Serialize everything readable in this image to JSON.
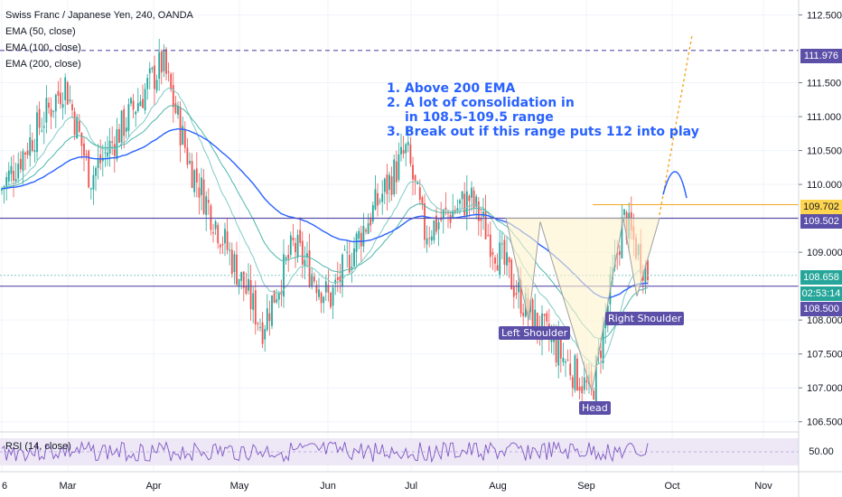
{
  "header": {
    "symbol": "Swiss Franc / Japanese Yen, 240, OANDA",
    "ema_50": "EMA (50, close)",
    "ema_100": "EMA (100, close)",
    "ema_200": "EMA (200, close)"
  },
  "annotation": {
    "line1": "1. Above 200 EMA",
    "line2": "2. A lot of consolidation in",
    "line3": "in 108.5-109.5 range",
    "line4": "3. Break out if this range puts 112 into play"
  },
  "pattern_labels": {
    "left_shoulder": "Left Shoulder",
    "head": "Head",
    "right_shoulder": "Right Shoulder"
  },
  "price_tags": {
    "level_111976": "111.976",
    "level_109702": "109.702",
    "level_109502": "109.502",
    "last_price": "108.658",
    "countdown": "02:53:14",
    "level_108500": "108.500",
    "rsi_value": "50.00"
  },
  "rsi_label": "RSI (14, close)",
  "colors": {
    "up_candle": "#26a69a",
    "down_candle": "#ef5350",
    "ema_200": "#2962ff",
    "level_line": "#5b4fa8",
    "resistance_orange": "#f5a623",
    "projection": "#2962ff",
    "rsi_line": "#7e57c2",
    "rsi_band": "#ede7f6"
  },
  "chart_data": {
    "type": "candlestick",
    "title": "Swiss Franc / Japanese Yen, 240, OANDA",
    "y_ticks": [
      "112.500",
      "111.500",
      "111.000",
      "110.500",
      "110.000",
      "109.000",
      "108.000",
      "107.500",
      "107.000",
      "106.500"
    ],
    "ylim": [
      106.35,
      112.72
    ],
    "x_ticks": [
      "6",
      "Mar",
      "Apr",
      "May",
      "Jun",
      "Jul",
      "Aug",
      "Sep",
      "Oct",
      "Nov"
    ],
    "horizontal_levels": [
      111.976,
      109.702,
      109.502,
      108.5
    ],
    "last_price": 108.658,
    "indicators": [
      "EMA (50, close)",
      "EMA (100, close)",
      "EMA (200, close)"
    ],
    "price_path": [
      {
        "x": "6",
        "y": 109.9
      },
      {
        "x": "Mar",
        "y": 111.5
      },
      {
        "x": "Mar",
        "y": 110.1
      },
      {
        "x": "Apr",
        "y": 111.8
      },
      {
        "x": "Apr",
        "y": 110.3
      },
      {
        "x": "May",
        "y": 107.9
      },
      {
        "x": "May",
        "y": 109.1
      },
      {
        "x": "Jun",
        "y": 108.3
      },
      {
        "x": "Jun",
        "y": 109.3
      },
      {
        "x": "Jul",
        "y": 110.5
      },
      {
        "x": "Jul",
        "y": 109.3
      },
      {
        "x": "Aug",
        "y": 109.8
      },
      {
        "x": "Aug",
        "y": 108.1
      },
      {
        "x": "Sep",
        "y": 106.9
      },
      {
        "x": "Sep",
        "y": 109.5
      },
      {
        "x": "Sep",
        "y": 108.658
      }
    ],
    "rsi": {
      "label": "RSI (14, close)",
      "level": 50.0
    }
  }
}
